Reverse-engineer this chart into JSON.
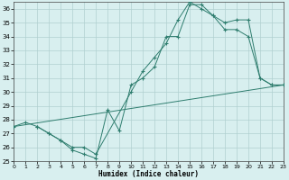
{
  "xlabel": "Humidex (Indice chaleur)",
  "xlim": [
    0,
    23
  ],
  "ylim": [
    25,
    36.5
  ],
  "yticks": [
    25,
    26,
    27,
    28,
    29,
    30,
    31,
    32,
    33,
    34,
    35,
    36
  ],
  "xticks": [
    0,
    1,
    2,
    3,
    4,
    5,
    6,
    7,
    8,
    9,
    10,
    11,
    12,
    13,
    14,
    15,
    16,
    17,
    18,
    19,
    20,
    21,
    22,
    23
  ],
  "line_color": "#2e7d6e",
  "bg_color": "#d8efef",
  "grid_color": "#b0d0d0",
  "line1_x": [
    0,
    1,
    2,
    3,
    4,
    5,
    6,
    7,
    8,
    9,
    10,
    11,
    12,
    13,
    14,
    15,
    16,
    17,
    18,
    19,
    20,
    21,
    22,
    23
  ],
  "line1_y": [
    27.5,
    27.8,
    27.5,
    27.0,
    26.5,
    25.8,
    25.5,
    25.2,
    28.7,
    27.2,
    30.5,
    31.0,
    31.8,
    34.0,
    34.0,
    36.3,
    36.3,
    35.5,
    34.5,
    34.5,
    34.0,
    31.0,
    30.5,
    30.5
  ],
  "line2_x": [
    2,
    3,
    4,
    5,
    6,
    7,
    10,
    11,
    12,
    13,
    14,
    15,
    16,
    17,
    18,
    19,
    20,
    21,
    22,
    23
  ],
  "line2_y": [
    27.5,
    27.0,
    26.5,
    26.0,
    26.0,
    25.5,
    30.0,
    31.5,
    32.5,
    33.5,
    35.2,
    36.5,
    36.0,
    35.5,
    35.0,
    35.2,
    35.2,
    31.0,
    30.5,
    30.5
  ],
  "trend_x": [
    0,
    23
  ],
  "trend_y": [
    27.5,
    30.5
  ]
}
